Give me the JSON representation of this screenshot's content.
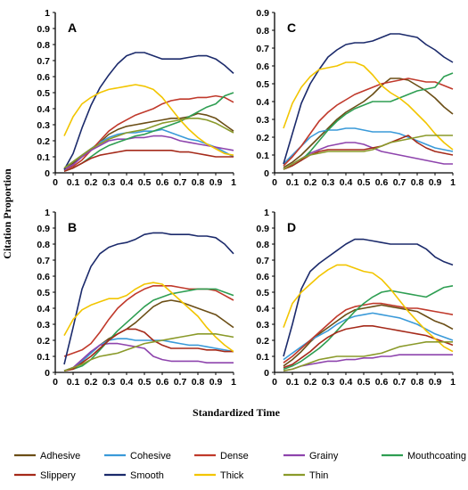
{
  "figure": {
    "ylabel": "Citation Proportion",
    "xlabel": "Standardized Time"
  },
  "legend": {
    "entries": [
      {
        "name": "Adhesive",
        "color": "#6b4e16"
      },
      {
        "name": "Cohesive",
        "color": "#3a9ad9"
      },
      {
        "name": "Dense",
        "color": "#c0392b"
      },
      {
        "name": "Grainy",
        "color": "#8e44ad"
      },
      {
        "name": "Mouthcoating",
        "color": "#2e9e52"
      },
      {
        "name": "Slippery",
        "color": "#a52a1a"
      },
      {
        "name": "Smooth",
        "color": "#1b2a6b"
      },
      {
        "name": "Thick",
        "color": "#f2c500"
      },
      {
        "name": "Thin",
        "color": "#8a9a2a"
      }
    ]
  },
  "chart_data": [
    {
      "type": "line",
      "panel": "A",
      "ylim": [
        0,
        1
      ],
      "yticks": [
        "0",
        "0.1",
        "0.2",
        "0.3",
        "0.4",
        "0.5",
        "0.6",
        "0.7",
        "0.8",
        "0.9",
        "1"
      ],
      "xlim": [
        0,
        1
      ],
      "xticks": [
        "0",
        "0.1",
        "0.2",
        "0.3",
        "0.4",
        "0.5",
        "0.6",
        "0.7",
        "0.8",
        "0.9",
        "1"
      ],
      "x": [
        0.05,
        0.1,
        0.15,
        0.2,
        0.25,
        0.3,
        0.35,
        0.4,
        0.45,
        0.5,
        0.55,
        0.6,
        0.65,
        0.7,
        0.75,
        0.8,
        0.85,
        0.9,
        0.95,
        1.0
      ],
      "series": [
        {
          "name": "Adhesive",
          "values": [
            0.03,
            0.06,
            0.1,
            0.14,
            0.19,
            0.24,
            0.27,
            0.29,
            0.3,
            0.31,
            0.32,
            0.33,
            0.34,
            0.34,
            0.35,
            0.37,
            0.36,
            0.34,
            0.3,
            0.26
          ]
        },
        {
          "name": "Cohesive",
          "values": [
            0.03,
            0.07,
            0.11,
            0.15,
            0.19,
            0.22,
            0.24,
            0.25,
            0.25,
            0.26,
            0.26,
            0.27,
            0.25,
            0.23,
            0.21,
            0.2,
            0.18,
            0.16,
            0.13,
            0.1
          ]
        },
        {
          "name": "Dense",
          "values": [
            0.02,
            0.04,
            0.08,
            0.14,
            0.2,
            0.26,
            0.3,
            0.33,
            0.36,
            0.38,
            0.4,
            0.43,
            0.45,
            0.46,
            0.46,
            0.47,
            0.47,
            0.48,
            0.47,
            0.44
          ]
        },
        {
          "name": "Grainy",
          "values": [
            0.02,
            0.05,
            0.1,
            0.14,
            0.17,
            0.2,
            0.21,
            0.21,
            0.22,
            0.22,
            0.23,
            0.23,
            0.22,
            0.2,
            0.19,
            0.18,
            0.17,
            0.16,
            0.15,
            0.14
          ]
        },
        {
          "name": "Mouthcoating",
          "values": [
            0.01,
            0.03,
            0.06,
            0.1,
            0.14,
            0.17,
            0.19,
            0.21,
            0.23,
            0.24,
            0.26,
            0.28,
            0.3,
            0.32,
            0.35,
            0.38,
            0.41,
            0.43,
            0.48,
            0.5
          ]
        },
        {
          "name": "Slippery",
          "values": [
            0.01,
            0.03,
            0.06,
            0.09,
            0.11,
            0.12,
            0.13,
            0.14,
            0.14,
            0.14,
            0.14,
            0.14,
            0.14,
            0.13,
            0.13,
            0.12,
            0.11,
            0.1,
            0.1,
            0.1
          ]
        },
        {
          "name": "Smooth",
          "values": [
            0.02,
            0.12,
            0.28,
            0.42,
            0.53,
            0.61,
            0.68,
            0.73,
            0.75,
            0.75,
            0.73,
            0.71,
            0.71,
            0.71,
            0.72,
            0.73,
            0.73,
            0.71,
            0.67,
            0.62
          ]
        },
        {
          "name": "Thick",
          "values": [
            0.23,
            0.35,
            0.43,
            0.47,
            0.5,
            0.52,
            0.53,
            0.54,
            0.55,
            0.54,
            0.52,
            0.47,
            0.4,
            0.33,
            0.27,
            0.22,
            0.18,
            0.15,
            0.12,
            0.11
          ]
        },
        {
          "name": "Thin",
          "values": [
            0.03,
            0.07,
            0.11,
            0.15,
            0.18,
            0.21,
            0.23,
            0.25,
            0.26,
            0.27,
            0.29,
            0.31,
            0.32,
            0.33,
            0.34,
            0.34,
            0.33,
            0.31,
            0.28,
            0.25
          ]
        }
      ]
    },
    {
      "type": "line",
      "panel": "B",
      "ylim": [
        0,
        1
      ],
      "yticks": [
        "0",
        "0.1",
        "0.2",
        "0.3",
        "0.4",
        "0.5",
        "0.6",
        "0.7",
        "0.8",
        "0.9",
        "1"
      ],
      "xlim": [
        0,
        1
      ],
      "xticks": [
        "0",
        "0.1",
        "0.2",
        "0.3",
        "0.4",
        "0.5",
        "0.6",
        "0.7",
        "0.8",
        "0.9",
        "1"
      ],
      "x": [
        0.05,
        0.1,
        0.15,
        0.2,
        0.25,
        0.3,
        0.35,
        0.4,
        0.45,
        0.5,
        0.55,
        0.6,
        0.65,
        0.7,
        0.75,
        0.8,
        0.85,
        0.9,
        0.95,
        1.0
      ],
      "series": [
        {
          "name": "Adhesive",
          "values": [
            0.01,
            0.03,
            0.07,
            0.12,
            0.17,
            0.21,
            0.24,
            0.27,
            0.31,
            0.36,
            0.41,
            0.44,
            0.45,
            0.44,
            0.42,
            0.4,
            0.38,
            0.36,
            0.32,
            0.28
          ]
        },
        {
          "name": "Cohesive",
          "values": [
            0.01,
            0.03,
            0.07,
            0.12,
            0.17,
            0.2,
            0.21,
            0.21,
            0.2,
            0.2,
            0.2,
            0.2,
            0.19,
            0.18,
            0.17,
            0.17,
            0.16,
            0.15,
            0.14,
            0.13
          ]
        },
        {
          "name": "Dense",
          "values": [
            0.1,
            0.12,
            0.14,
            0.18,
            0.25,
            0.33,
            0.4,
            0.45,
            0.49,
            0.52,
            0.54,
            0.54,
            0.54,
            0.53,
            0.52,
            0.52,
            0.52,
            0.51,
            0.48,
            0.45
          ]
        },
        {
          "name": "Grainy",
          "values": [
            0.01,
            0.03,
            0.08,
            0.13,
            0.17,
            0.18,
            0.18,
            0.17,
            0.16,
            0.15,
            0.1,
            0.08,
            0.07,
            0.07,
            0.07,
            0.07,
            0.06,
            0.06,
            0.06,
            0.06
          ]
        },
        {
          "name": "Mouthcoating",
          "values": [
            0.01,
            0.02,
            0.04,
            0.08,
            0.14,
            0.2,
            0.26,
            0.31,
            0.36,
            0.41,
            0.45,
            0.47,
            0.49,
            0.5,
            0.51,
            0.52,
            0.52,
            0.52,
            0.5,
            0.48
          ]
        },
        {
          "name": "Slippery",
          "values": [
            0.01,
            0.02,
            0.06,
            0.1,
            0.15,
            0.2,
            0.24,
            0.27,
            0.27,
            0.25,
            0.2,
            0.17,
            0.15,
            0.15,
            0.15,
            0.15,
            0.14,
            0.14,
            0.13,
            0.13
          ]
        },
        {
          "name": "Smooth",
          "values": [
            0.05,
            0.28,
            0.52,
            0.66,
            0.74,
            0.78,
            0.8,
            0.81,
            0.83,
            0.86,
            0.87,
            0.87,
            0.86,
            0.86,
            0.86,
            0.85,
            0.85,
            0.84,
            0.8,
            0.74
          ]
        },
        {
          "name": "Thick",
          "values": [
            0.23,
            0.33,
            0.39,
            0.42,
            0.44,
            0.46,
            0.46,
            0.48,
            0.52,
            0.55,
            0.56,
            0.55,
            0.5,
            0.45,
            0.4,
            0.35,
            0.28,
            0.22,
            0.17,
            0.13
          ]
        },
        {
          "name": "Thin",
          "values": [
            0.01,
            0.03,
            0.05,
            0.08,
            0.1,
            0.11,
            0.12,
            0.14,
            0.16,
            0.18,
            0.19,
            0.2,
            0.21,
            0.22,
            0.23,
            0.24,
            0.24,
            0.24,
            0.23,
            0.22
          ]
        }
      ]
    },
    {
      "type": "line",
      "panel": "C",
      "ylim": [
        0,
        0.9
      ],
      "yticks": [
        "0",
        "0.1",
        "0.2",
        "0.3",
        "0.4",
        "0.5",
        "0.6",
        "0.7",
        "0.8",
        "0.9"
      ],
      "xlim": [
        0,
        1
      ],
      "xticks": [
        "0",
        "0.1",
        "0.2",
        "0.3",
        "0.4",
        "0.5",
        "0.6",
        "0.7",
        "0.8",
        "0.9",
        "1"
      ],
      "x": [
        0.05,
        0.1,
        0.15,
        0.2,
        0.25,
        0.3,
        0.35,
        0.4,
        0.45,
        0.5,
        0.55,
        0.6,
        0.65,
        0.7,
        0.75,
        0.8,
        0.85,
        0.9,
        0.95,
        1.0
      ],
      "series": [
        {
          "name": "Adhesive",
          "values": [
            0.03,
            0.06,
            0.1,
            0.15,
            0.2,
            0.25,
            0.3,
            0.34,
            0.37,
            0.4,
            0.44,
            0.49,
            0.53,
            0.53,
            0.52,
            0.49,
            0.46,
            0.42,
            0.37,
            0.33
          ]
        },
        {
          "name": "Cohesive",
          "values": [
            0.05,
            0.1,
            0.15,
            0.2,
            0.23,
            0.24,
            0.24,
            0.25,
            0.25,
            0.24,
            0.23,
            0.23,
            0.23,
            0.22,
            0.2,
            0.18,
            0.16,
            0.14,
            0.13,
            0.12
          ]
        },
        {
          "name": "Dense",
          "values": [
            0.04,
            0.09,
            0.15,
            0.22,
            0.29,
            0.34,
            0.38,
            0.41,
            0.44,
            0.46,
            0.48,
            0.5,
            0.51,
            0.52,
            0.53,
            0.52,
            0.51,
            0.51,
            0.49,
            0.47
          ]
        },
        {
          "name": "Grainy",
          "values": [
            0.02,
            0.05,
            0.08,
            0.11,
            0.13,
            0.15,
            0.16,
            0.17,
            0.17,
            0.16,
            0.14,
            0.12,
            0.11,
            0.1,
            0.09,
            0.08,
            0.07,
            0.06,
            0.05,
            0.05
          ]
        },
        {
          "name": "Mouthcoating",
          "values": [
            0.02,
            0.04,
            0.07,
            0.12,
            0.18,
            0.24,
            0.29,
            0.33,
            0.36,
            0.38,
            0.4,
            0.4,
            0.4,
            0.42,
            0.44,
            0.46,
            0.47,
            0.48,
            0.54,
            0.56
          ]
        },
        {
          "name": "Slippery",
          "values": [
            0.02,
            0.04,
            0.07,
            0.1,
            0.12,
            0.13,
            0.13,
            0.13,
            0.13,
            0.13,
            0.14,
            0.15,
            0.17,
            0.19,
            0.21,
            0.17,
            0.14,
            0.12,
            0.11,
            0.1
          ]
        },
        {
          "name": "Smooth",
          "values": [
            0.05,
            0.22,
            0.39,
            0.5,
            0.58,
            0.65,
            0.69,
            0.72,
            0.73,
            0.73,
            0.74,
            0.76,
            0.78,
            0.78,
            0.77,
            0.76,
            0.72,
            0.69,
            0.65,
            0.62
          ]
        },
        {
          "name": "Thick",
          "values": [
            0.25,
            0.39,
            0.48,
            0.54,
            0.58,
            0.59,
            0.6,
            0.62,
            0.62,
            0.6,
            0.55,
            0.49,
            0.45,
            0.42,
            0.38,
            0.33,
            0.28,
            0.22,
            0.17,
            0.13
          ]
        },
        {
          "name": "Thin",
          "values": [
            0.02,
            0.05,
            0.08,
            0.1,
            0.11,
            0.12,
            0.12,
            0.12,
            0.12,
            0.12,
            0.13,
            0.15,
            0.17,
            0.18,
            0.19,
            0.2,
            0.21,
            0.21,
            0.21,
            0.21
          ]
        }
      ]
    },
    {
      "type": "line",
      "panel": "D",
      "ylim": [
        0,
        1
      ],
      "yticks": [
        "0",
        "0.1",
        "0.2",
        "0.3",
        "0.4",
        "0.5",
        "0.6",
        "0.7",
        "0.8",
        "0.9",
        "1"
      ],
      "xlim": [
        0,
        1
      ],
      "xticks": [
        "0",
        "0.1",
        "0.2",
        "0.3",
        "0.4",
        "0.5",
        "0.6",
        "0.7",
        "0.8",
        "0.9",
        "1"
      ],
      "x": [
        0.05,
        0.1,
        0.15,
        0.2,
        0.25,
        0.3,
        0.35,
        0.4,
        0.45,
        0.5,
        0.55,
        0.6,
        0.65,
        0.7,
        0.75,
        0.8,
        0.85,
        0.9,
        0.95,
        1.0
      ],
      "series": [
        {
          "name": "Adhesive",
          "values": [
            0.04,
            0.08,
            0.13,
            0.19,
            0.24,
            0.28,
            0.32,
            0.36,
            0.39,
            0.4,
            0.41,
            0.42,
            0.41,
            0.4,
            0.39,
            0.38,
            0.35,
            0.32,
            0.3,
            0.27
          ]
        },
        {
          "name": "Cohesive",
          "values": [
            0.08,
            0.12,
            0.16,
            0.2,
            0.23,
            0.26,
            0.3,
            0.33,
            0.35,
            0.36,
            0.37,
            0.36,
            0.35,
            0.34,
            0.32,
            0.3,
            0.27,
            0.24,
            0.22,
            0.2
          ]
        },
        {
          "name": "Dense",
          "values": [
            0.06,
            0.1,
            0.15,
            0.2,
            0.25,
            0.3,
            0.35,
            0.39,
            0.41,
            0.42,
            0.43,
            0.43,
            0.42,
            0.41,
            0.4,
            0.4,
            0.39,
            0.38,
            0.37,
            0.36
          ]
        },
        {
          "name": "Grainy",
          "values": [
            0.01,
            0.02,
            0.04,
            0.05,
            0.06,
            0.07,
            0.07,
            0.08,
            0.08,
            0.09,
            0.09,
            0.1,
            0.1,
            0.11,
            0.11,
            0.11,
            0.11,
            0.11,
            0.11,
            0.11
          ]
        },
        {
          "name": "Mouthcoating",
          "values": [
            0.02,
            0.04,
            0.07,
            0.11,
            0.15,
            0.2,
            0.26,
            0.32,
            0.38,
            0.43,
            0.47,
            0.5,
            0.51,
            0.5,
            0.49,
            0.48,
            0.47,
            0.5,
            0.53,
            0.54
          ]
        },
        {
          "name": "Slippery",
          "values": [
            0.03,
            0.05,
            0.09,
            0.13,
            0.18,
            0.22,
            0.25,
            0.27,
            0.28,
            0.29,
            0.29,
            0.28,
            0.27,
            0.26,
            0.25,
            0.24,
            0.23,
            0.21,
            0.19,
            0.17
          ]
        },
        {
          "name": "Smooth",
          "values": [
            0.1,
            0.3,
            0.52,
            0.63,
            0.68,
            0.72,
            0.76,
            0.8,
            0.83,
            0.83,
            0.82,
            0.81,
            0.8,
            0.8,
            0.8,
            0.8,
            0.77,
            0.72,
            0.69,
            0.67
          ]
        },
        {
          "name": "Thick",
          "values": [
            0.28,
            0.43,
            0.5,
            0.55,
            0.6,
            0.64,
            0.67,
            0.67,
            0.65,
            0.63,
            0.62,
            0.58,
            0.52,
            0.45,
            0.38,
            0.32,
            0.26,
            0.21,
            0.16,
            0.13
          ]
        },
        {
          "name": "Thin",
          "values": [
            0.01,
            0.02,
            0.04,
            0.06,
            0.08,
            0.09,
            0.1,
            0.1,
            0.1,
            0.1,
            0.11,
            0.12,
            0.14,
            0.16,
            0.17,
            0.18,
            0.19,
            0.19,
            0.19,
            0.19
          ]
        }
      ]
    }
  ]
}
